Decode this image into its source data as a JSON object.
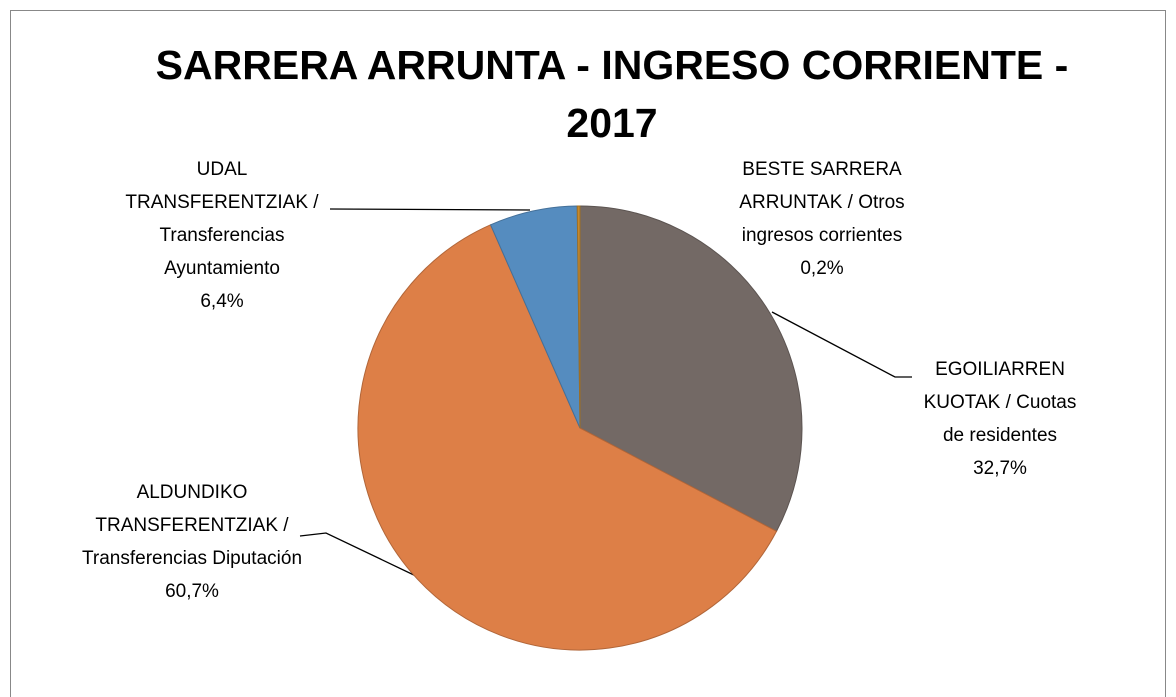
{
  "chart_data": {
    "type": "pie",
    "title": "SARRERA ARRUNTA - INGRESO CORRIENTE - 2017",
    "categories": [
      "EGOILIARREN KUOTAK / Cuotas de residentes",
      "ALDUNDIKO TRANSFERENTZIAK / Transferencias Diputación",
      "UDAL TRANSFERENTZIAK / Transferencias Ayuntamiento",
      "BESTE SARRERA ARRUNTAK / Otros ingresos corrientes"
    ],
    "values": [
      32.7,
      60.7,
      6.4,
      0.2
    ],
    "value_labels": [
      "32,7%",
      "60,7%",
      "6,4%",
      "0,2%"
    ],
    "colors": [
      "#736965",
      "#dd7f47",
      "#558cbf",
      "#c58a2e"
    ]
  }
}
